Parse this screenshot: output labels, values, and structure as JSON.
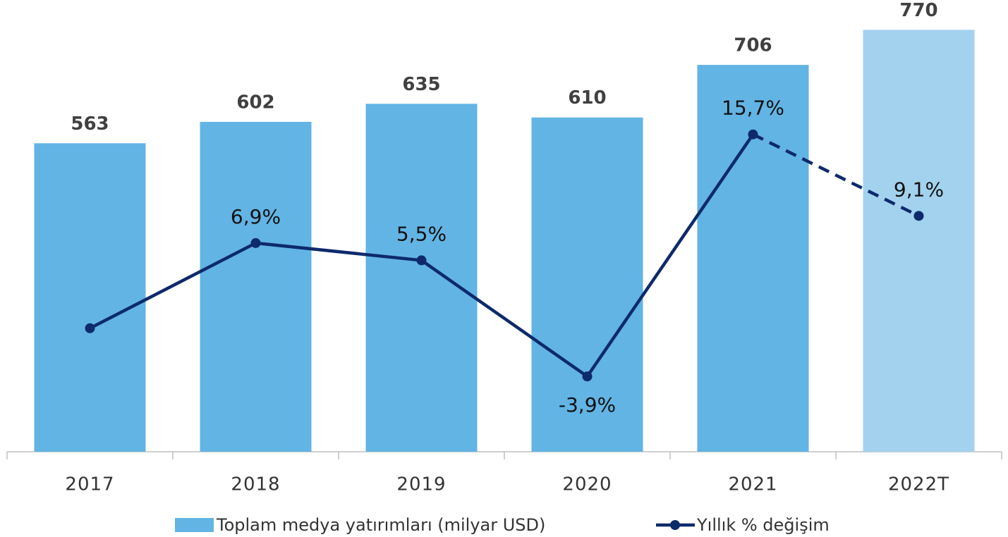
{
  "chart_data": {
    "type": "bar_line",
    "categories": [
      "2017",
      "2018",
      "2019",
      "2020",
      "2021",
      "2022T"
    ],
    "ylim": [
      0,
      800
    ],
    "y2lim": [
      -10,
      25.5
    ],
    "legend": "bottom",
    "series": [
      {
        "name": "Toplam medya yatırımları (milyar USD)",
        "type": "bar",
        "color": "#62b4e4",
        "colors": [
          "#62b4e4",
          "#62b4e4",
          "#62b4e4",
          "#62b4e4",
          "#62b4e4",
          "#a3d2ee"
        ],
        "values": [
          563,
          602,
          635,
          610,
          706,
          770
        ]
      },
      {
        "name": "Yıllık % değişim",
        "type": "line",
        "axis": "y2",
        "color": "#0d2a6b",
        "dash_last_segment": true,
        "values": [
          0,
          6.9,
          5.5,
          -3.9,
          15.7,
          9.1
        ],
        "value_labels": [
          null,
          "6,9%",
          "5,5%",
          "-3,9%",
          "15,7%",
          "9,1%"
        ]
      }
    ]
  }
}
